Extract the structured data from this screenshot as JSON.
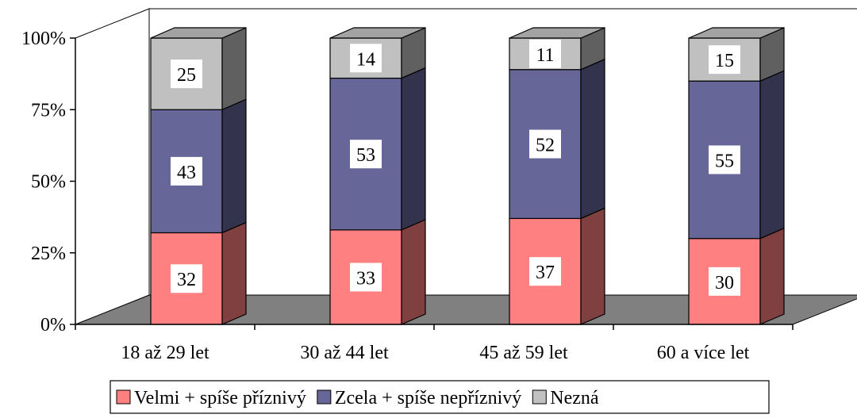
{
  "chart_data": {
    "type": "bar",
    "stacked": true,
    "percent_stacked": true,
    "three_d": true,
    "categories": [
      "18 až 29 let",
      "30 až 44 let",
      "45 až 59 let",
      "60 a více let"
    ],
    "series": [
      {
        "name": "Velmi + spíše příznivý",
        "values": [
          32,
          33,
          37,
          30
        ],
        "color": "#FF8080"
      },
      {
        "name": "Zcela + spíše nepříznivý",
        "values": [
          43,
          53,
          52,
          55
        ],
        "color": "#666699"
      },
      {
        "name": "Nezná",
        "values": [
          25,
          14,
          11,
          15
        ],
        "color": "#C0C0C0"
      }
    ],
    "y_ticks": [
      "0%",
      "25%",
      "50%",
      "75%",
      "100%"
    ],
    "ylim": [
      0,
      100
    ],
    "legend_position": "bottom",
    "grid": false
  }
}
